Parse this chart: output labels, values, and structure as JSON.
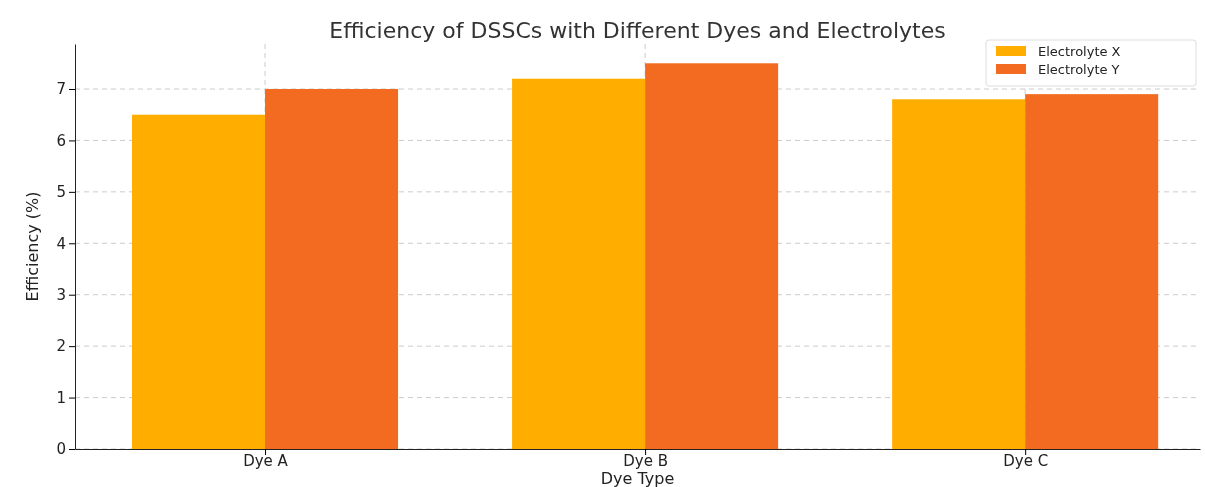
{
  "chart_data": {
    "type": "bar",
    "title": "Efficiency of DSSCs with Different Dyes and Electrolytes",
    "xlabel": "Dye Type",
    "ylabel": "Efficiency (%)",
    "categories": [
      "Dye A",
      "Dye B",
      "Dye C"
    ],
    "series": [
      {
        "name": "Electrolyte X",
        "color": "#ffae00",
        "values": [
          6.5,
          7.2,
          6.8
        ]
      },
      {
        "name": "Electrolyte Y",
        "color": "#f26b21",
        "values": [
          7.0,
          7.5,
          6.9
        ]
      }
    ],
    "ylim": [
      0,
      7.875
    ],
    "yticks": [
      0,
      1,
      2,
      3,
      4,
      5,
      6,
      7
    ],
    "grid": true,
    "legend": "top right"
  }
}
